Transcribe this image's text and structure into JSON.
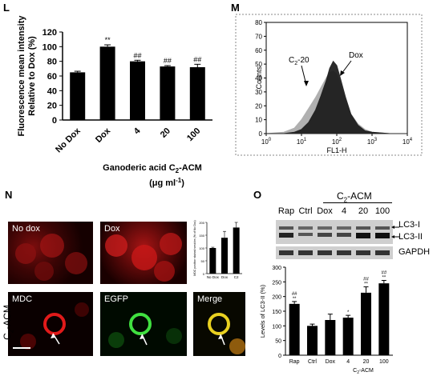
{
  "panels": {
    "L": "L",
    "M": "M",
    "N": "N",
    "O": "O"
  },
  "chart_data": [
    {
      "id": "L",
      "type": "bar",
      "ylabel_line1": "Fluorescence mean intensity",
      "ylabel_line2": "Relative to Dox (%)",
      "ylim": [
        0,
        120
      ],
      "yticks": [
        0,
        20,
        40,
        60,
        80,
        100,
        120
      ],
      "categories": [
        "No Dox",
        "Dox",
        "4",
        "20",
        "100"
      ],
      "values": [
        65,
        100,
        80,
        73,
        72
      ],
      "errors": [
        1.5,
        2.5,
        1.5,
        1.2,
        4
      ],
      "annotations": [
        "",
        "**",
        "##",
        "##",
        "##"
      ],
      "xlabel_line1": "Ganoderic acid C",
      "xlabel_sub": "2",
      "xlabel_suffix": "-ACM",
      "unit_line": "(μg ml",
      "unit_sup": "-1",
      "unit_close": ")"
    },
    {
      "id": "M",
      "type": "area",
      "ylabel": "Counts",
      "yticks": [
        0,
        10,
        20,
        30,
        40,
        50,
        60,
        70,
        80
      ],
      "ylim": [
        0,
        80
      ],
      "xlabel": "FL1-H",
      "xtick_base": "10",
      "xtick_exps": [
        "0",
        "1",
        "2",
        "3",
        "4"
      ],
      "series": [
        {
          "name": "C2-20",
          "label_main": "C",
          "label_sub": "2",
          "label_suffix": "-20",
          "color": "#b0b0b0",
          "x_log": [
            0,
            0.5,
            0.8,
            1.0,
            1.2,
            1.4,
            1.55,
            1.7,
            1.8,
            1.9,
            2.0,
            2.1,
            2.25,
            2.4,
            2.6,
            2.8,
            3.0,
            3.5,
            4.0
          ],
          "y": [
            0,
            1,
            4,
            10,
            18,
            26,
            33,
            40,
            44,
            45,
            43,
            36,
            24,
            14,
            7,
            3,
            1,
            0,
            0
          ]
        },
        {
          "name": "Dox",
          "label_main": "Dox",
          "color": "#1a1a1a",
          "x_log": [
            0,
            0.5,
            0.8,
            1.0,
            1.2,
            1.4,
            1.55,
            1.7,
            1.8,
            1.9,
            2.0,
            2.1,
            2.25,
            2.4,
            2.6,
            2.8,
            3.0,
            3.5,
            4.0
          ],
          "y": [
            0,
            0,
            1,
            3,
            8,
            17,
            27,
            38,
            47,
            52,
            49,
            40,
            26,
            14,
            6,
            2,
            1,
            0,
            0
          ]
        }
      ]
    },
    {
      "id": "N-inset",
      "type": "bar",
      "ylabel": "MDC positive stained vesicles (% of No Dox)",
      "ylim": [
        0,
        200
      ],
      "yticks": [
        0,
        50,
        100,
        150,
        200
      ],
      "categories": [
        "No Dox",
        "Dox",
        "C2"
      ],
      "values": [
        100,
        140,
        180
      ],
      "errors": [
        3,
        25,
        20
      ]
    },
    {
      "id": "O",
      "type": "bar",
      "ylabel": "Levels of LC3-II (%)",
      "ylim": [
        0,
        300
      ],
      "yticks": [
        0,
        50,
        100,
        150,
        200,
        250,
        300
      ],
      "categories": [
        "Rap",
        "Ctrl",
        "Dox",
        "4",
        "20",
        "100"
      ],
      "values": [
        175,
        100,
        120,
        128,
        213,
        245
      ],
      "errors": [
        8,
        6,
        20,
        8,
        20,
        10
      ],
      "annotations_top": [
        "##",
        "",
        "",
        "",
        "##",
        "##"
      ],
      "annotations_bottom": [
        "**",
        "",
        "",
        "*",
        "**",
        "**"
      ],
      "xlabel_main": "C",
      "xlabel_sub": "2",
      "xlabel_suffix": "-ACM"
    }
  ],
  "microscopy": {
    "no_dox": "No dox",
    "dox": "Dox",
    "mdc": "MDC",
    "egfp": "EGFP",
    "merge": "Merge",
    "side_main": "C",
    "side_sub": "2",
    "side_suffix": "-ACM"
  },
  "western": {
    "header_main": "C",
    "header_sub": "2",
    "header_suffix": "-ACM",
    "lanes": [
      "Rap",
      "Ctrl",
      "Dox",
      "4",
      "20",
      "100"
    ],
    "lc3_1": "LC3-I",
    "lc3_2": "LC3-II",
    "gapdh": "GAPDH"
  }
}
